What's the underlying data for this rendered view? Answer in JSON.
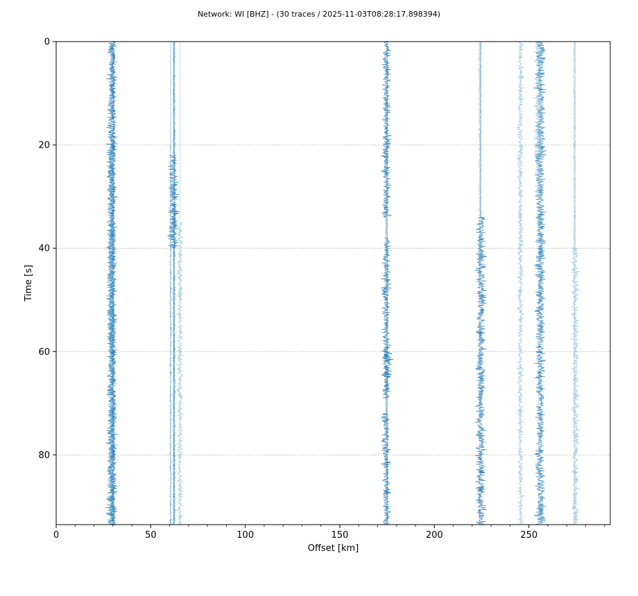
{
  "chart_data": {
    "type": "line",
    "title": "Network: WI [BHZ] - (30 traces / 2025-11-03T08:28:17.898394)",
    "xlabel": "Offset [km]",
    "ylabel": "Time [s]",
    "xlim": [
      0,
      293
    ],
    "ylim": [
      93.5,
      0
    ],
    "y_inverted": true,
    "xticks": [
      0,
      50,
      100,
      150,
      200,
      250
    ],
    "xticklabels": [
      "0",
      "50",
      "100",
      "150",
      "200",
      "250"
    ],
    "yticks": [
      0,
      20,
      40,
      60,
      80
    ],
    "yticklabels": [
      "0",
      "20",
      "40",
      "60",
      "80"
    ],
    "grid": "horizontal",
    "colors": {
      "dark": "#1f77b4",
      "light": "#8fbfd8",
      "mid": "#4a9ac4"
    },
    "series": [
      {
        "offset_km": 29.5,
        "amplitude_km": 3.5,
        "active": [
          [
            0,
            93.5
          ]
        ],
        "shade": "dark"
      },
      {
        "offset_km": 30.2,
        "amplitude_km": 1.5,
        "active": [
          [
            0,
            93.5
          ]
        ],
        "shade": "dark"
      },
      {
        "offset_km": 29.0,
        "amplitude_km": 2.5,
        "active": [
          [
            20,
            93.5
          ]
        ],
        "shade": "mid"
      },
      {
        "offset_km": 62.0,
        "amplitude_km": 3.5,
        "active": [
          [
            22,
            40
          ]
        ],
        "shade": "dark"
      },
      {
        "offset_km": 62.5,
        "amplitude_km": 0.6,
        "active": [
          [
            0,
            93.5
          ]
        ],
        "shade": "dark"
      },
      {
        "offset_km": 60.5,
        "amplitude_km": 0.6,
        "active": [
          [
            20,
            93.5
          ]
        ],
        "shade": "mid"
      },
      {
        "offset_km": 65.5,
        "amplitude_km": 2.0,
        "active": [
          [
            35,
            93.5
          ]
        ],
        "shade": "light"
      },
      {
        "offset_km": 174.5,
        "amplitude_km": 3.0,
        "active": [
          [
            0,
            34
          ],
          [
            38,
            69
          ],
          [
            72,
            93.5
          ]
        ],
        "shade": "dark"
      },
      {
        "offset_km": 175.0,
        "amplitude_km": 4.0,
        "active": [
          [
            60,
            65
          ]
        ],
        "shade": "dark"
      },
      {
        "offset_km": 224.0,
        "amplitude_km": 1.0,
        "active": [
          [
            0,
            34
          ]
        ],
        "shade": "light"
      },
      {
        "offset_km": 224.5,
        "amplitude_km": 3.5,
        "active": [
          [
            34,
            93.5
          ]
        ],
        "shade": "dark"
      },
      {
        "offset_km": 245.5,
        "amplitude_km": 2.0,
        "active": [
          [
            0,
            93.5
          ]
        ],
        "shade": "light"
      },
      {
        "offset_km": 256.0,
        "amplitude_km": 3.5,
        "active": [
          [
            0,
            93.5
          ]
        ],
        "shade": "dark"
      },
      {
        "offset_km": 255.0,
        "amplitude_km": 3.0,
        "active": [
          [
            0,
            30
          ]
        ],
        "shade": "light"
      },
      {
        "offset_km": 274.5,
        "amplitude_km": 2.5,
        "active": [
          [
            40,
            93.5
          ]
        ],
        "shade": "light"
      },
      {
        "offset_km": 274.0,
        "amplitude_km": 0.8,
        "active": [
          [
            0,
            40
          ]
        ],
        "shade": "light"
      }
    ]
  }
}
